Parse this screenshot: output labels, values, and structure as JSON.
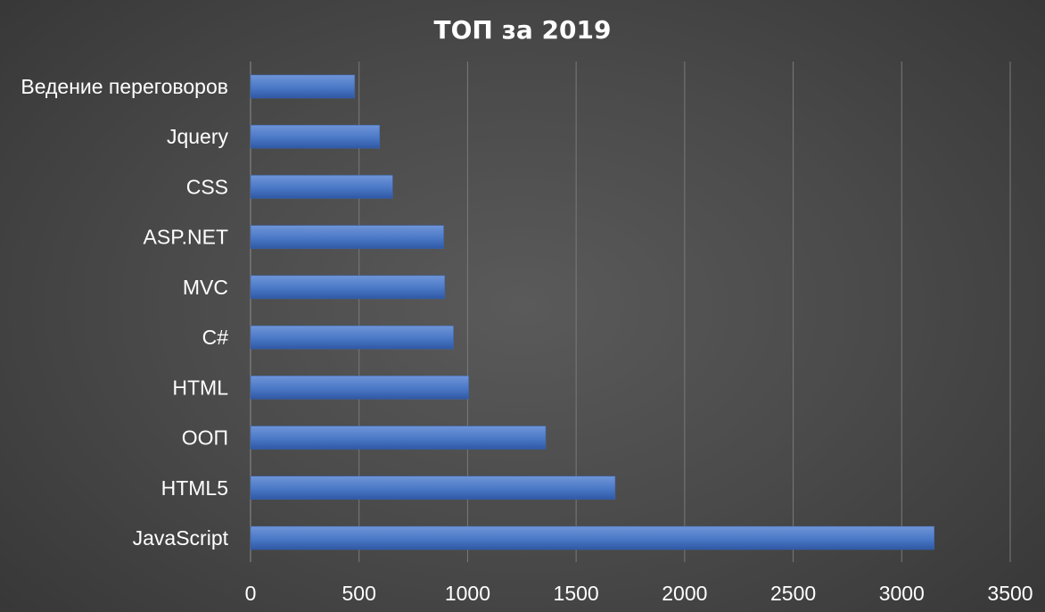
{
  "chart_data": {
    "type": "bar",
    "orientation": "horizontal",
    "title": "ТОП за 2019",
    "xlabel": "",
    "ylabel": "",
    "categories": [
      "JavaScript",
      "HTML5",
      "ООП",
      "HTML",
      "C#",
      "MVC",
      "ASP.NET",
      "CSS",
      "Jquery",
      "Ведение переговоров"
    ],
    "values": [
      3150,
      1680,
      1360,
      1005,
      935,
      895,
      890,
      655,
      595,
      480
    ],
    "xlim": [
      0,
      3500
    ],
    "xticks": [
      0,
      500,
      1000,
      1500,
      2000,
      2500,
      3000,
      3500
    ],
    "grid": true,
    "legend": "none",
    "bar_color": "#4472c4"
  }
}
